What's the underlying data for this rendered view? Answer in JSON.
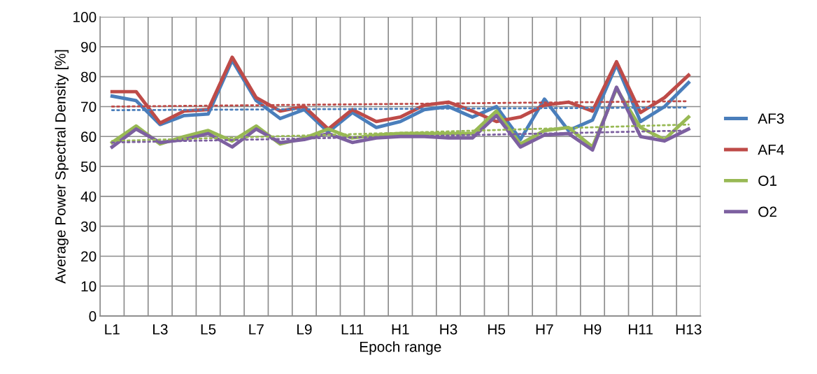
{
  "chart_data": {
    "type": "line",
    "xlabel": "Epoch range",
    "ylabel": "Average Power Spectral Density [%]",
    "categories": [
      "L1",
      null,
      "L3",
      null,
      "L5",
      null,
      "L7",
      null,
      "L9",
      null,
      "L11",
      null,
      "H1",
      null,
      "H3",
      null,
      "H5",
      null,
      "H7",
      null,
      "H9",
      null,
      "H11",
      null,
      "H13"
    ],
    "series": [
      {
        "name": "AF3",
        "color": "#4a7ebb",
        "values": [
          73.5,
          72,
          64,
          67,
          67.5,
          85.5,
          72,
          66,
          69,
          61.5,
          68,
          63,
          65,
          69,
          70,
          66.5,
          70,
          59,
          72.5,
          62,
          65.5,
          84,
          65,
          70,
          78
        ]
      },
      {
        "name": "AF4",
        "color": "#be4b48",
        "values": [
          75,
          75,
          64.5,
          68.5,
          69,
          86.5,
          73,
          68.5,
          70,
          62.5,
          69,
          65,
          66.5,
          70.5,
          71.5,
          68.5,
          65,
          66.5,
          70.5,
          71.5,
          68.5,
          85,
          68,
          73,
          80.5
        ]
      },
      {
        "name": "O1",
        "color": "#98b954",
        "values": [
          58,
          63.5,
          57.5,
          60,
          62,
          58.5,
          63.5,
          57.5,
          59.5,
          62.5,
          59.5,
          60.5,
          61,
          61,
          61,
          61,
          68.5,
          57.5,
          62,
          63,
          56.5,
          76,
          63,
          59,
          66.5
        ]
      },
      {
        "name": "O2",
        "color": "#7d60a0",
        "values": [
          56.5,
          62.5,
          58,
          59,
          61,
          56.5,
          62.5,
          58,
          59,
          61,
          58,
          59.5,
          60,
          60,
          59.5,
          59.5,
          67,
          56.5,
          60.5,
          61,
          55.5,
          76.5,
          60,
          58.5,
          62.5
        ]
      },
      {
        "color": "#4a7ebb",
        "line_style": "dotted",
        "x": [
          "L1",
          "H13"
        ],
        "values": [
          68.8,
          69.7
        ]
      },
      {
        "color": "#be4b48",
        "line_style": "dotted",
        "x": [
          "L1",
          "H13"
        ],
        "values": [
          70,
          71.8
        ]
      },
      {
        "color": "#98b954",
        "line_style": "dotted",
        "x": [
          "L1",
          "H13"
        ],
        "values": [
          58.5,
          64
        ]
      },
      {
        "color": "#7d60a0",
        "line_style": "dotted",
        "x": [
          "L1",
          "H13"
        ],
        "values": [
          58,
          62
        ]
      }
    ],
    "ylim": [
      0,
      100
    ],
    "yticks": [
      0,
      10,
      20,
      30,
      40,
      50,
      60,
      70,
      80,
      90,
      100
    ],
    "grid": true,
    "legend": "right",
    "marker": "none",
    "line_style": "solid"
  }
}
